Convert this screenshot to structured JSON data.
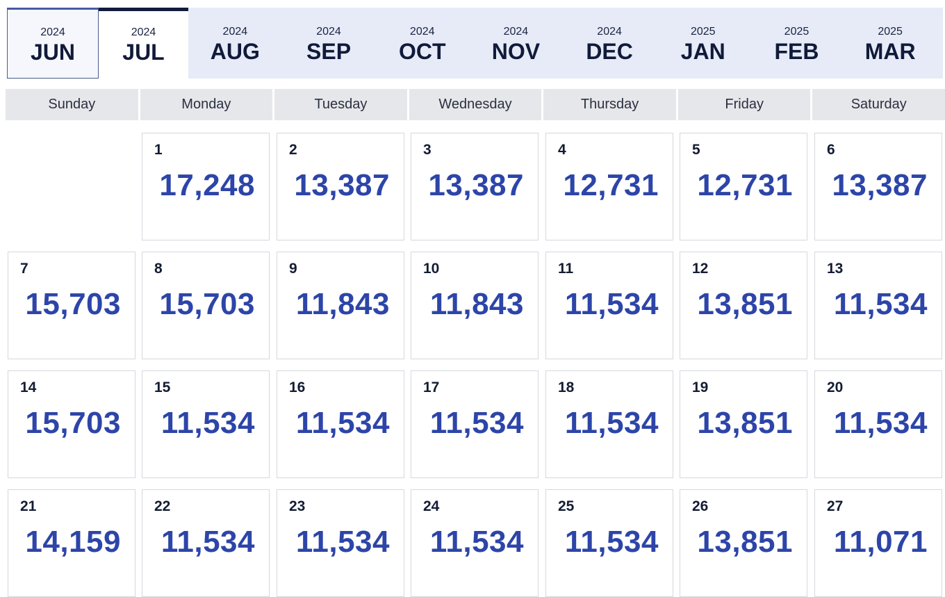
{
  "months": [
    {
      "year": "2024",
      "month": "JUN"
    },
    {
      "year": "2024",
      "month": "JUL"
    },
    {
      "year": "2024",
      "month": "AUG"
    },
    {
      "year": "2024",
      "month": "SEP"
    },
    {
      "year": "2024",
      "month": "OCT"
    },
    {
      "year": "2024",
      "month": "NOV"
    },
    {
      "year": "2024",
      "month": "DEC"
    },
    {
      "year": "2025",
      "month": "JAN"
    },
    {
      "year": "2025",
      "month": "FEB"
    },
    {
      "year": "2025",
      "month": "MAR"
    }
  ],
  "selected_month": "JUL",
  "weekdays": [
    "Sunday",
    "Monday",
    "Tuesday",
    "Wednesday",
    "Thursday",
    "Friday",
    "Saturday"
  ],
  "days": [
    {
      "day": "1",
      "price": "17,248"
    },
    {
      "day": "2",
      "price": "13,387"
    },
    {
      "day": "3",
      "price": "13,387"
    },
    {
      "day": "4",
      "price": "12,731"
    },
    {
      "day": "5",
      "price": "12,731"
    },
    {
      "day": "6",
      "price": "13,387"
    },
    {
      "day": "7",
      "price": "15,703"
    },
    {
      "day": "8",
      "price": "15,703"
    },
    {
      "day": "9",
      "price": "11,843"
    },
    {
      "day": "10",
      "price": "11,843"
    },
    {
      "day": "11",
      "price": "11,534"
    },
    {
      "day": "12",
      "price": "13,851"
    },
    {
      "day": "13",
      "price": "11,534"
    },
    {
      "day": "14",
      "price": "15,703"
    },
    {
      "day": "15",
      "price": "11,534"
    },
    {
      "day": "16",
      "price": "11,534"
    },
    {
      "day": "17",
      "price": "11,534"
    },
    {
      "day": "18",
      "price": "11,534"
    },
    {
      "day": "19",
      "price": "13,851"
    },
    {
      "day": "20",
      "price": "11,534"
    },
    {
      "day": "21",
      "price": "14,159"
    },
    {
      "day": "22",
      "price": "11,534"
    },
    {
      "day": "23",
      "price": "11,534"
    },
    {
      "day": "24",
      "price": "11,534"
    },
    {
      "day": "25",
      "price": "11,534"
    },
    {
      "day": "26",
      "price": "13,851"
    },
    {
      "day": "27",
      "price": "11,071"
    }
  ]
}
